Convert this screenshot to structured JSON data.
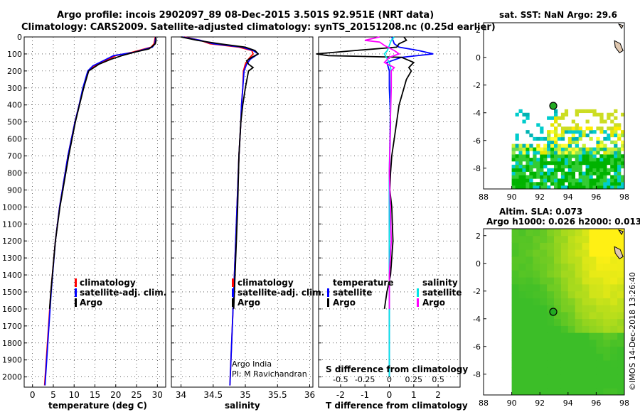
{
  "header": {
    "title_line1": "Argo profile: incois 2902097_89 08-Dec-2015 3.501S 92.951E (NRT data)",
    "title_line2": "Climatology: CARS2009. Satellite-adjusted climatology: synTS_20151208.nc (0.25d earlier)"
  },
  "footer": {
    "credit": "©IMOS 14-Dec-2018 13:26:40",
    "argo_org": "Argo India",
    "pi": "PI: M Ravichandran"
  },
  "colors": {
    "climatology": "#ff0000",
    "satellite": "#0000ff",
    "argo": "#000000",
    "sal_satellite": "#00e5e5",
    "sal_argo": "#ff00ff"
  },
  "chart_data": [
    {
      "type": "line",
      "id": "temperature",
      "xlabel": "temperature (deg C)",
      "ylabel": "",
      "xlim": [
        -2,
        32
      ],
      "ylim": [
        2060,
        0
      ],
      "xticks": [
        0,
        5,
        10,
        15,
        20,
        25,
        30
      ],
      "yticks": [
        0,
        100,
        200,
        300,
        400,
        500,
        600,
        700,
        800,
        900,
        1000,
        1100,
        1200,
        1300,
        1400,
        1500,
        1600,
        1700,
        1800,
        1900,
        2000
      ],
      "legend": [
        "climatology",
        "satellite-adj. clim.",
        "Argo"
      ],
      "series": [
        {
          "name": "climatology",
          "depth": [
            0,
            40,
            60,
            90,
            110,
            140,
            170,
            200,
            300,
            400,
            500,
            700,
            1000,
            1200,
            1500,
            2050
          ],
          "values": [
            29.5,
            29.2,
            28.5,
            24,
            20,
            17.5,
            15,
            13.5,
            12.2,
            11.2,
            10.2,
            8.5,
            6.5,
            5.5,
            4.4,
            2.9
          ]
        },
        {
          "name": "satellite-adj. clim.",
          "depth": [
            0,
            40,
            60,
            90,
            110,
            140,
            170,
            200,
            300,
            400,
            500,
            700,
            1000,
            1200,
            1500,
            2050
          ],
          "values": [
            29.6,
            29.4,
            28.8,
            24.5,
            19.5,
            17,
            14.5,
            13.3,
            12.1,
            11.2,
            10.2,
            8.5,
            6.5,
            5.5,
            4.5,
            3.0
          ]
        },
        {
          "name": "Argo",
          "depth": [
            0,
            20,
            40,
            55,
            70,
            90,
            110,
            130,
            160,
            200,
            300,
            400,
            500,
            700,
            1000,
            1200,
            1500,
            1600
          ],
          "values": [
            29.6,
            29.7,
            29.5,
            28.8,
            28,
            24.5,
            21.5,
            19,
            16,
            13.5,
            12.3,
            11.3,
            10.3,
            8.7,
            6.6,
            5.5,
            4.4,
            4.1
          ]
        }
      ]
    },
    {
      "type": "line",
      "id": "salinity",
      "xlabel": "salinity",
      "xlim": [
        33.85,
        36.05
      ],
      "ylim": [
        2060,
        0
      ],
      "xticks": [
        34,
        34.5,
        35,
        35.5,
        36
      ],
      "legend": [
        "climatology",
        "satellite-adj. clim.",
        "Argo"
      ],
      "series": [
        {
          "name": "climatology",
          "depth": [
            0,
            20,
            40,
            60,
            80,
            100,
            130,
            160,
            200,
            300,
            400,
            500,
            700,
            1000,
            1500,
            2050
          ],
          "values": [
            34.05,
            34.3,
            34.45,
            34.9,
            35.1,
            35.12,
            35.05,
            35.0,
            34.97,
            34.96,
            34.94,
            34.93,
            34.9,
            34.87,
            34.82,
            34.76
          ]
        },
        {
          "name": "satellite-adj. clim.",
          "depth": [
            0,
            20,
            40,
            60,
            80,
            100,
            130,
            160,
            200,
            300,
            400,
            500,
            700,
            1000,
            1500,
            2050
          ],
          "values": [
            34.02,
            34.3,
            34.5,
            34.95,
            35.12,
            35.2,
            35.08,
            35.02,
            34.98,
            34.96,
            34.94,
            34.93,
            34.9,
            34.87,
            34.82,
            34.76
          ]
        },
        {
          "name": "Argo",
          "depth": [
            0,
            20,
            40,
            60,
            80,
            100,
            120,
            140,
            160,
            180,
            200,
            300,
            400,
            500,
            700,
            1000,
            1200,
            1500,
            1600
          ],
          "values": [
            34.0,
            34.25,
            34.6,
            35.0,
            35.15,
            35.2,
            35.1,
            35.02,
            35.05,
            35.12,
            35.05,
            35.0,
            34.96,
            34.93,
            34.9,
            34.88,
            34.86,
            34.83,
            34.82
          ]
        }
      ]
    },
    {
      "type": "line",
      "id": "difference",
      "xlabel": "T difference from climatology",
      "x2label": "S difference from climatology",
      "xlim": [
        -2.9,
        2.9
      ],
      "x2lim": [
        -0.725,
        0.725
      ],
      "ylim": [
        2060,
        0
      ],
      "xticks": [
        -2,
        -1,
        0,
        1,
        2
      ],
      "x2ticks": [
        -0.5,
        -0.25,
        0,
        0.25,
        0.5
      ],
      "legend_temperature_title": "temperature",
      "legend_salinity_title": "salinity",
      "legend": [
        "satellite",
        "Argo"
      ],
      "series": [
        {
          "name": "T satellite",
          "axis": "T",
          "depth": [
            0,
            40,
            60,
            80,
            100,
            120,
            150,
            200,
            300,
            500,
            800,
            1200,
            2000
          ],
          "values": [
            0.1,
            0.2,
            0.4,
            1.2,
            1.8,
            0.5,
            -0.1,
            0,
            0,
            0.05,
            0,
            0,
            0
          ]
        },
        {
          "name": "T Argo",
          "axis": "T",
          "depth": [
            0,
            20,
            40,
            60,
            80,
            100,
            110,
            120,
            150,
            180,
            200,
            250,
            300,
            400,
            500,
            600,
            700,
            800,
            900,
            1000,
            1200,
            1400,
            1500,
            1600
          ],
          "values": [
            0.6,
            0.7,
            0.4,
            0.3,
            -1.4,
            -3.0,
            -2.5,
            0.5,
            1,
            0.8,
            0.9,
            0.7,
            0.6,
            0.4,
            0.3,
            0.2,
            0.1,
            0.05,
            0.02,
            0.1,
            0.15,
            0.05,
            -0.1,
            -0.2
          ]
        },
        {
          "name": "S satellite",
          "axis": "S",
          "depth": [
            0,
            20,
            50,
            80,
            100,
            150,
            200,
            400,
            800,
            1200,
            2000
          ],
          "values": [
            0.05,
            0.02,
            0.0,
            -0.02,
            -0.05,
            0.0,
            0.02,
            0.01,
            0.0,
            0.0,
            0.0
          ]
        },
        {
          "name": "S Argo",
          "axis": "S",
          "depth": [
            0,
            20,
            30,
            50,
            80,
            100,
            120,
            150,
            180,
            200,
            300,
            500,
            800,
            1000,
            1200,
            1400,
            1600
          ],
          "values": [
            -0.1,
            -0.25,
            -0.1,
            -0.05,
            0.05,
            0.1,
            0.0,
            -0.05,
            0.05,
            0.02,
            0.02,
            0.01,
            0.0,
            0.01,
            0.02,
            0.0,
            0.0
          ]
        }
      ]
    },
    {
      "type": "heatmap",
      "id": "sst_map",
      "title": "sat. SST: NaN Argo: 29.6",
      "xlim": [
        88,
        98
      ],
      "ylim": [
        -9.5,
        2.5
      ],
      "xticks": [
        88,
        90,
        92,
        94,
        96,
        98
      ],
      "yticks": [
        2,
        0,
        -2,
        -4,
        -6,
        -8
      ],
      "argo_position": [
        92.951,
        -3.501
      ]
    },
    {
      "type": "heatmap",
      "id": "sla_map",
      "title_line1": "Altim. SLA: 0.073",
      "title_line2": "Argo h1000: 0.026 h2000: 0.013",
      "xlim": [
        88,
        98
      ],
      "ylim": [
        -9.5,
        2.5
      ],
      "xticks": [
        88,
        90,
        92,
        94,
        96,
        98
      ],
      "yticks": [
        2,
        0,
        -2,
        -4,
        -6,
        -8
      ],
      "argo_position": [
        92.951,
        -3.501
      ]
    }
  ]
}
